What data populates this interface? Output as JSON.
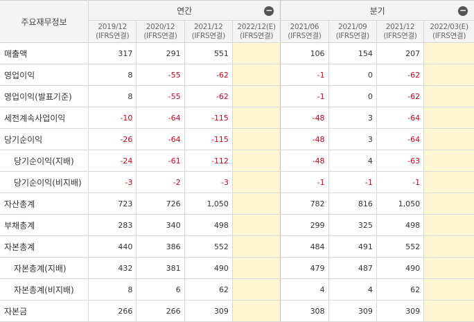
{
  "table": {
    "corner_label": "주요재무정보",
    "groups": {
      "annual": "연간",
      "quarterly": "분기"
    },
    "annual_periods": [
      {
        "date": "2019/12",
        "basis": "(IFRS연결)"
      },
      {
        "date": "2020/12",
        "basis": "(IFRS연결)"
      },
      {
        "date": "2021/12",
        "basis": "(IFRS연결)"
      },
      {
        "date": "2022/12(E)",
        "basis": "(IFRS연결)"
      }
    ],
    "quarter_periods": [
      {
        "date": "2021/06",
        "basis": "(IFRS연결)"
      },
      {
        "date": "2021/09",
        "basis": "(IFRS연결)"
      },
      {
        "date": "2021/12",
        "basis": "(IFRS연결)"
      },
      {
        "date": "2022/03(E)",
        "basis": "(IFRS연결)"
      }
    ],
    "rows": [
      {
        "label": "매출액",
        "sub": false,
        "annual": [
          "317",
          "291",
          "551",
          ""
        ],
        "quarter": [
          "106",
          "154",
          "207",
          ""
        ]
      },
      {
        "label": "영업이익",
        "sub": false,
        "annual": [
          "8",
          "-55",
          "-62",
          ""
        ],
        "quarter": [
          "-1",
          "0",
          "-62",
          ""
        ]
      },
      {
        "label": "영업이익(발표기준)",
        "sub": false,
        "annual": [
          "8",
          "-55",
          "-62",
          ""
        ],
        "quarter": [
          "-1",
          "0",
          "-62",
          ""
        ]
      },
      {
        "label": "세전계속사업이익",
        "sub": false,
        "annual": [
          "-10",
          "-64",
          "-115",
          ""
        ],
        "quarter": [
          "-48",
          "3",
          "-64",
          ""
        ]
      },
      {
        "label": "당기순이익",
        "sub": false,
        "annual": [
          "-26",
          "-64",
          "-115",
          ""
        ],
        "quarter": [
          "-48",
          "3",
          "-64",
          ""
        ]
      },
      {
        "label": "당기순이익(지배)",
        "sub": true,
        "annual": [
          "-24",
          "-61",
          "-112",
          ""
        ],
        "quarter": [
          "-48",
          "4",
          "-63",
          ""
        ]
      },
      {
        "label": "당기순이익(비지배)",
        "sub": true,
        "annual": [
          "-3",
          "-2",
          "-3",
          ""
        ],
        "quarter": [
          "-1",
          "-1",
          "-1",
          ""
        ]
      },
      {
        "label": "자산총계",
        "sub": false,
        "sep": true,
        "annual": [
          "723",
          "726",
          "1,050",
          ""
        ],
        "quarter": [
          "782",
          "816",
          "1,050",
          ""
        ]
      },
      {
        "label": "부채총계",
        "sub": false,
        "annual": [
          "283",
          "340",
          "498",
          ""
        ],
        "quarter": [
          "299",
          "325",
          "498",
          ""
        ]
      },
      {
        "label": "자본총계",
        "sub": false,
        "annual": [
          "440",
          "386",
          "552",
          ""
        ],
        "quarter": [
          "484",
          "491",
          "552",
          ""
        ]
      },
      {
        "label": "자본총계(지배)",
        "sub": true,
        "annual": [
          "432",
          "381",
          "490",
          ""
        ],
        "quarter": [
          "479",
          "487",
          "490",
          ""
        ]
      },
      {
        "label": "자본총계(비지배)",
        "sub": true,
        "annual": [
          "8",
          "6",
          "62",
          ""
        ],
        "quarter": [
          "4",
          "4",
          "62",
          ""
        ]
      },
      {
        "label": "자본금",
        "sub": false,
        "annual": [
          "266",
          "266",
          "309",
          ""
        ],
        "quarter": [
          "308",
          "309",
          "309",
          ""
        ]
      }
    ]
  }
}
